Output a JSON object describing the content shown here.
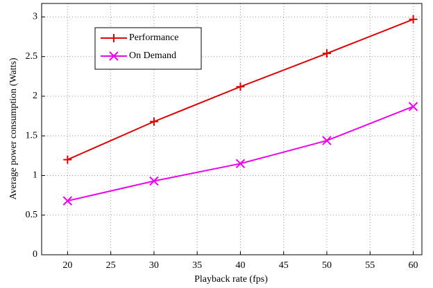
{
  "chart_data": {
    "type": "line",
    "x_label": "Playback rate (fps)",
    "y_label": "Average power consumption (Watts)",
    "x": [
      20,
      30,
      40,
      50,
      60
    ],
    "series": [
      {
        "name": "Performance",
        "color": "#e00000",
        "marker": "plus",
        "values": [
          1.2,
          1.68,
          2.12,
          2.54,
          2.97
        ]
      },
      {
        "name": "On Demand",
        "color": "#ee00ee",
        "marker": "x",
        "values": [
          0.68,
          0.93,
          1.15,
          1.44,
          1.87
        ]
      }
    ],
    "xlim": [
      17,
      61
    ],
    "xticks": [
      20,
      25,
      30,
      35,
      40,
      45,
      50,
      55,
      60
    ],
    "ylim": [
      0,
      3.17
    ],
    "yticks": [
      0,
      0.5,
      1,
      1.5,
      2,
      2.5,
      3
    ],
    "grid": true,
    "legend": "upper left"
  }
}
